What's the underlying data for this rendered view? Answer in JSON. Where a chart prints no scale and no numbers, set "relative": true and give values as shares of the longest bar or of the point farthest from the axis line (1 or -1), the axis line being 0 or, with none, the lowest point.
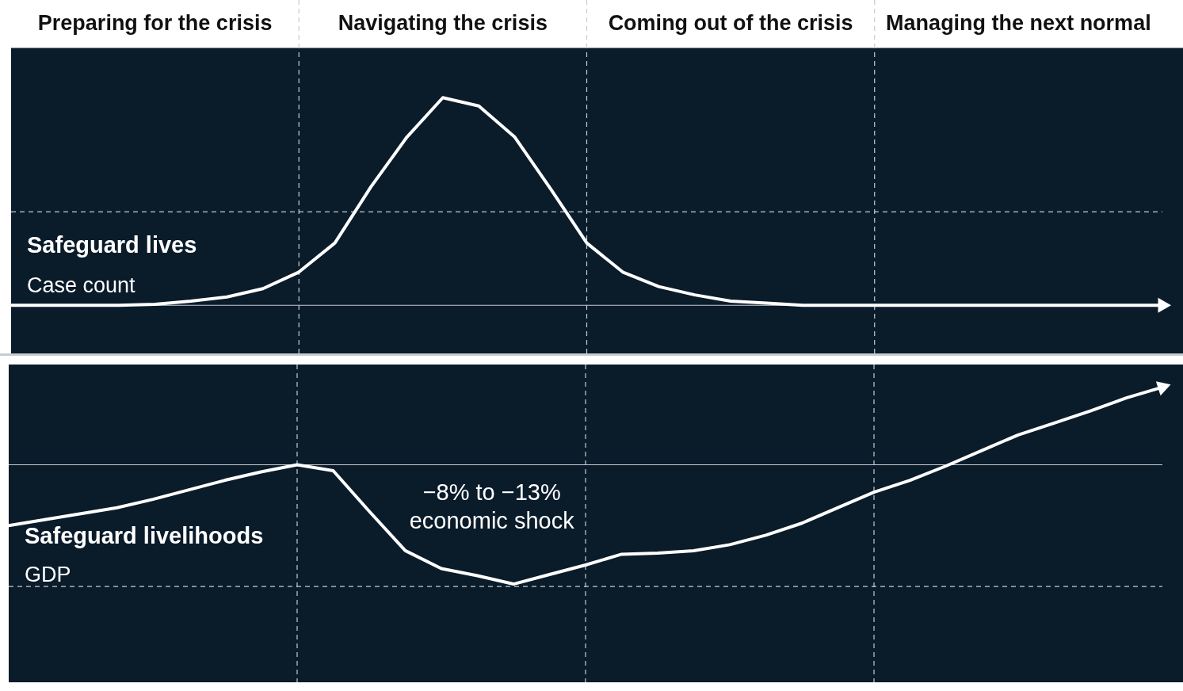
{
  "chart_data": [
    {
      "type": "line",
      "relative": true,
      "title": "Safeguard lives",
      "subtitle": "Case count",
      "categories": [
        null,
        null,
        null,
        null,
        "Preparing for the crisis",
        null,
        null,
        null,
        null,
        null,
        null,
        null,
        "Navigating the crisis",
        null,
        null,
        null,
        null,
        null,
        null,
        null,
        "Coming out of the crisis",
        null,
        null,
        null,
        null,
        null,
        null,
        null,
        "Managing the next normal",
        null,
        null,
        null,
        null
      ],
      "tick_labels": "x",
      "grid": "x",
      "legend": false,
      "marker": "none",
      "line_style": "solid",
      "series": [
        {
          "color": "#ffffff",
          "values": [
            0,
            0,
            0,
            0,
            0.005,
            0.02,
            0.04,
            0.08,
            0.16,
            0.3,
            0.57,
            0.81,
            1,
            0.96,
            0.81,
            0.56,
            0.3,
            0.16,
            0.09,
            0.05,
            0.02,
            0.01,
            0,
            0,
            0,
            0,
            0,
            0,
            0,
            0,
            0,
            0,
            0
          ]
        }
      ],
      "ref_lines": [
        {
          "axis": "y",
          "value": 0,
          "color": "#c8ccd0",
          "line_style": "solid"
        },
        {
          "axis": "y",
          "value": 0.45,
          "color": "#c8ccd0",
          "line_style": "dashed"
        }
      ]
    },
    {
      "type": "line",
      "relative": true,
      "title": "Safeguard livelihoods",
      "subtitle": "GDP",
      "categories": [
        null,
        null,
        null,
        null,
        null,
        null,
        null,
        null,
        null,
        null,
        null,
        null,
        null,
        null,
        null,
        null,
        null,
        null,
        null,
        null,
        null,
        null,
        null,
        null,
        null,
        null,
        null,
        null,
        null,
        null,
        null,
        null,
        null
      ],
      "tick_labels": false,
      "grid": "x",
      "legend": false,
      "marker": "none",
      "line_style": "solid",
      "annotations": [
        "−8% to −13% economic shock"
      ],
      "series": [
        {
          "color": "#ffffff",
          "values": [
            -0.51,
            -0.46,
            -0.41,
            -0.36,
            -0.29,
            -0.21,
            -0.13,
            -0.06,
            0,
            -0.05,
            -0.39,
            -0.72,
            -0.87,
            -0.93,
            -1,
            -0.92,
            -0.84,
            -0.75,
            -0.74,
            -0.72,
            -0.67,
            -0.59,
            -0.49,
            -0.36,
            -0.23,
            -0.13,
            -0.01,
            0.12,
            0.25,
            0.35,
            0.45,
            0.56,
            0.65
          ]
        }
      ],
      "ref_lines": [
        {
          "axis": "y",
          "value": 0,
          "color": "#c8ccd0",
          "line_style": "solid"
        },
        {
          "axis": "y",
          "value": -1.02,
          "color": "#c8ccd0",
          "line_style": "dashed"
        }
      ]
    }
  ]
}
